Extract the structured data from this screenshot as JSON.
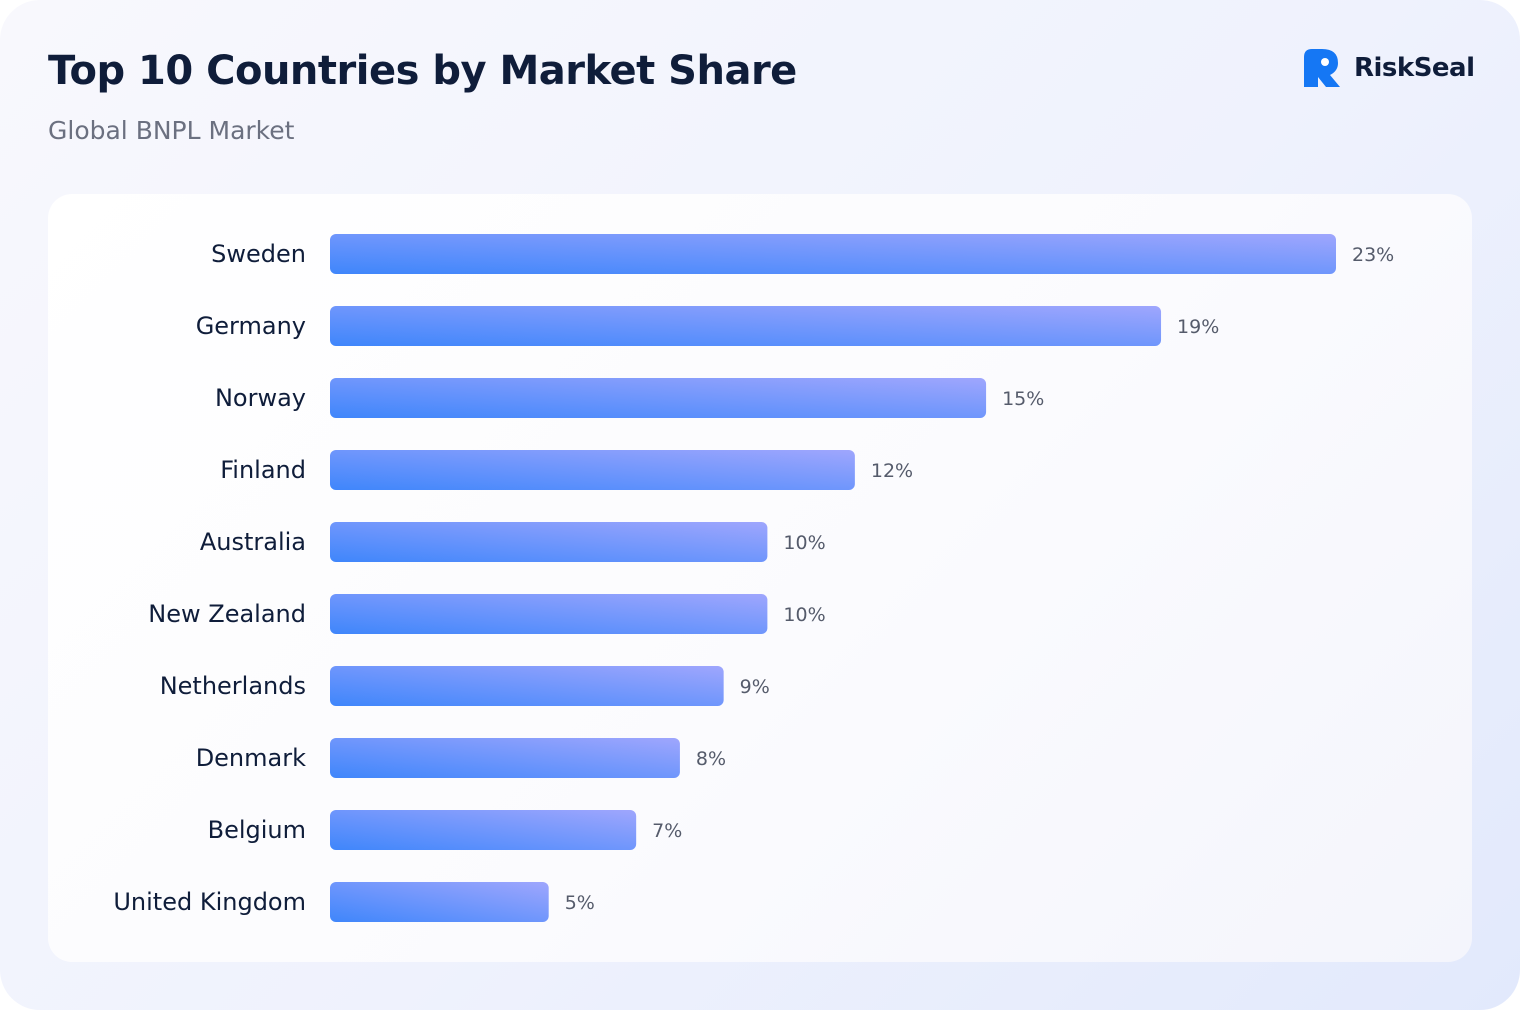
{
  "header": {
    "title": "Top 10 Countries by Market Share",
    "subtitle": "Global BNPL Market",
    "brand": "RiskSeal",
    "logo_icon": "riskseal-logo-icon"
  },
  "colors": {
    "bar_start": "#3f86fb",
    "bar_end": "#9fa6fd",
    "text_dark": "#0f1d3a",
    "text_muted": "#6b7080",
    "logo_blue": "#1577f4"
  },
  "chart_data": {
    "type": "bar",
    "orientation": "horizontal",
    "title": "Top 10 Countries by Market Share",
    "subtitle": "Global BNPL Market",
    "categories": [
      "Sweden",
      "Germany",
      "Norway",
      "Finland",
      "Australia",
      "New Zealand",
      "Netherlands",
      "Denmark",
      "Belgium",
      "United Kingdom"
    ],
    "values": [
      23,
      19,
      15,
      12,
      10,
      10,
      9,
      8,
      7,
      5
    ],
    "value_labels": [
      "23%",
      "19%",
      "15%",
      "12%",
      "10%",
      "10%",
      "9%",
      "8%",
      "7%",
      "5%"
    ],
    "xlim": [
      0,
      23
    ],
    "grid": false,
    "legend": "none"
  }
}
